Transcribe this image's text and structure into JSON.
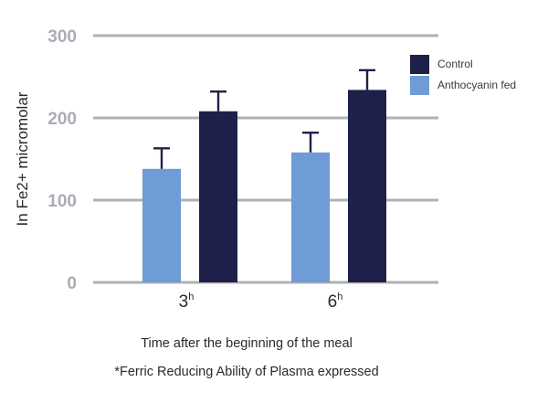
{
  "chart_data": {
    "type": "bar",
    "title": "",
    "xlabel": "Time after the beginning of the meal",
    "ylabel": "In Fe2+ micromolar",
    "note": "*Ferric Reducing Ability of Plasma expressed",
    "categories": [
      {
        "label": "3",
        "sup": "h"
      },
      {
        "label": "6",
        "sup": "h"
      }
    ],
    "ylim": [
      0,
      300
    ],
    "yticks": [
      "0",
      "100",
      "200",
      "300"
    ],
    "grid": true,
    "legend_position": "top-right",
    "series": [
      {
        "name": "Anthocyanin fed",
        "color": "#6f9bd6",
        "values": [
          138,
          158
        ],
        "errors": [
          25,
          24
        ]
      },
      {
        "name": "Control",
        "color": "#1f2049",
        "values": [
          208,
          234
        ],
        "errors": [
          24,
          24
        ]
      }
    ],
    "legend_order": [
      1,
      0
    ],
    "colors": {
      "grid": "#aeb1b6",
      "tick": "#a9adb4",
      "error": "#1f2049"
    }
  }
}
